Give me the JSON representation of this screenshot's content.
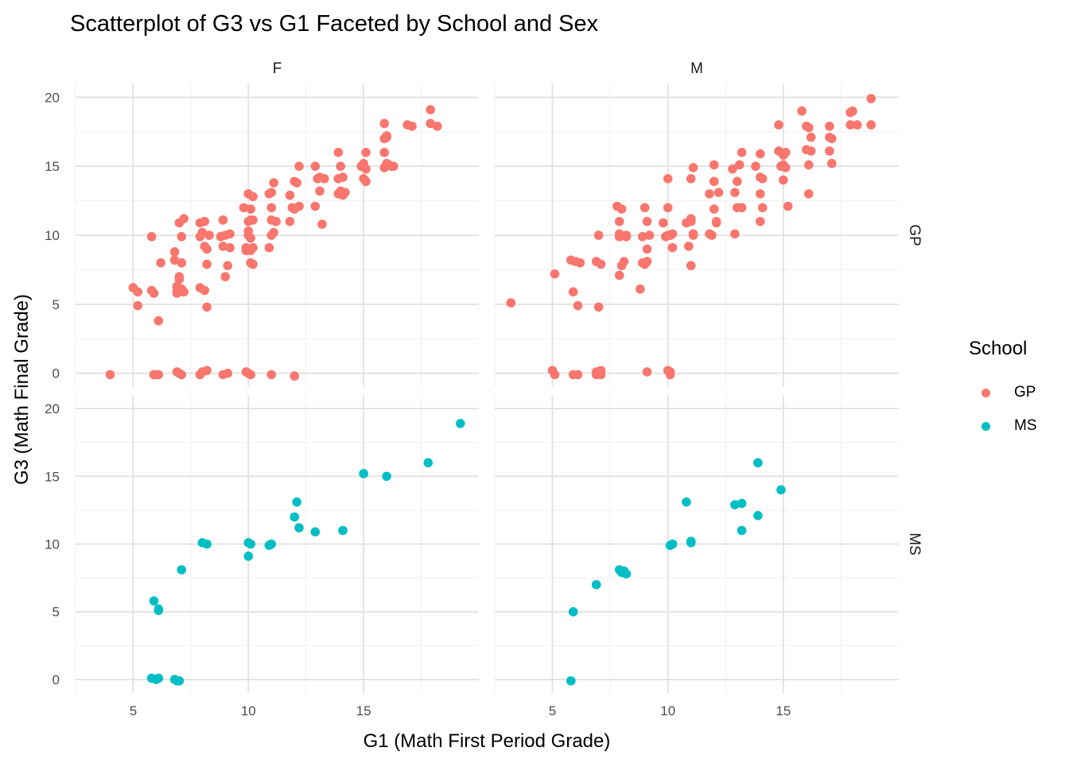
{
  "chart_data": {
    "type": "scatter",
    "title": "Scatterplot of G3 vs G1 Faceted by School and Sex",
    "xlabel": "G1 (Math First Period Grade)",
    "ylabel": "G3 (Math Final Grade)",
    "xlim": [
      2.5,
      20
    ],
    "ylim": [
      -1,
      21
    ],
    "x_ticks": [
      5,
      10,
      15
    ],
    "y_ticks": [
      0,
      5,
      10,
      15,
      20
    ],
    "grid": true,
    "legend_title": "School",
    "legend_position": "right",
    "colors": {
      "GP": "#F8766D",
      "MS": "#00BFC4"
    },
    "col_facets": [
      "F",
      "M"
    ],
    "row_facets": [
      "GP",
      "MS"
    ],
    "panels": [
      {
        "sex": "F",
        "school": "GP",
        "points": [
          [
            4.0,
            -0.1
          ],
          [
            5.9,
            -0.1
          ],
          [
            6.0,
            -0.1
          ],
          [
            6.1,
            -0.1
          ],
          [
            6.9,
            0.1
          ],
          [
            7.1,
            -0.1
          ],
          [
            7.0,
            0.0
          ],
          [
            8.0,
            0.1
          ],
          [
            8.2,
            0.2
          ],
          [
            7.9,
            -0.1
          ],
          [
            8.9,
            -0.1
          ],
          [
            9.1,
            0.0
          ],
          [
            9.9,
            0.1
          ],
          [
            10.1,
            -0.1
          ],
          [
            10.0,
            0.0
          ],
          [
            11.0,
            -0.1
          ],
          [
            12.0,
            -0.2
          ],
          [
            5.0,
            6.2
          ],
          [
            5.2,
            5.9
          ],
          [
            5.2,
            4.9
          ],
          [
            5.8,
            6.0
          ],
          [
            5.9,
            5.8
          ],
          [
            5.8,
            9.9
          ],
          [
            6.1,
            3.8
          ],
          [
            6.2,
            8.0
          ],
          [
            6.8,
            8.8
          ],
          [
            6.8,
            8.2
          ],
          [
            6.9,
            6.0
          ],
          [
            6.9,
            5.8
          ],
          [
            7.0,
            7.0
          ],
          [
            7.0,
            10.9
          ],
          [
            7.2,
            11.2
          ],
          [
            7.1,
            8.0
          ],
          [
            7.1,
            9.9
          ],
          [
            7.1,
            6.1
          ],
          [
            7.2,
            5.9
          ],
          [
            7.0,
            6.8
          ],
          [
            6.9,
            6.3
          ],
          [
            7.9,
            10.9
          ],
          [
            8.1,
            11.0
          ],
          [
            7.9,
            9.9
          ],
          [
            8.0,
            10.2
          ],
          [
            8.1,
            9.2
          ],
          [
            8.2,
            7.9
          ],
          [
            8.2,
            4.8
          ],
          [
            7.9,
            6.2
          ],
          [
            8.1,
            6.0
          ],
          [
            8.3,
            10.0
          ],
          [
            8.2,
            9.0
          ],
          [
            8.9,
            11.1
          ],
          [
            8.8,
            9.9
          ],
          [
            8.9,
            9.2
          ],
          [
            9.0,
            7.0
          ],
          [
            9.1,
            7.8
          ],
          [
            9.2,
            9.1
          ],
          [
            9.2,
            10.1
          ],
          [
            9.0,
            10.0
          ],
          [
            9.8,
            12.0
          ],
          [
            10.0,
            13.0
          ],
          [
            10.2,
            12.8
          ],
          [
            10.1,
            11.9
          ],
          [
            10.0,
            11.0
          ],
          [
            10.2,
            11.1
          ],
          [
            10.0,
            10.3
          ],
          [
            10.1,
            9.8
          ],
          [
            10.2,
            9.1
          ],
          [
            9.9,
            8.9
          ],
          [
            10.1,
            8.9
          ],
          [
            10.2,
            7.9
          ],
          [
            10.1,
            8.0
          ],
          [
            10.1,
            11.1
          ],
          [
            10.0,
            10.0
          ],
          [
            9.9,
            9.1
          ],
          [
            10.9,
            13.0
          ],
          [
            11.0,
            13.1
          ],
          [
            11.1,
            13.8
          ],
          [
            11.0,
            12.0
          ],
          [
            11.0,
            11.1
          ],
          [
            11.2,
            11.0
          ],
          [
            11.0,
            10.0
          ],
          [
            10.9,
            9.1
          ],
          [
            11.1,
            10.2
          ],
          [
            11.2,
            11.0
          ],
          [
            11.8,
            12.9
          ],
          [
            12.0,
            13.9
          ],
          [
            11.9,
            12.0
          ],
          [
            12.2,
            15.0
          ],
          [
            12.0,
            11.9
          ],
          [
            12.1,
            13.8
          ],
          [
            12.2,
            12.1
          ],
          [
            11.8,
            11.0
          ],
          [
            12.9,
            15.0
          ],
          [
            13.0,
            14.1
          ],
          [
            13.1,
            14.2
          ],
          [
            13.1,
            13.2
          ],
          [
            12.9,
            12.1
          ],
          [
            13.3,
            14.1
          ],
          [
            13.2,
            10.8
          ],
          [
            13.9,
            16.0
          ],
          [
            14.0,
            15.0
          ],
          [
            13.9,
            14.1
          ],
          [
            14.1,
            14.2
          ],
          [
            14.0,
            13.2
          ],
          [
            14.1,
            12.9
          ],
          [
            13.9,
            13.0
          ],
          [
            14.2,
            13.1
          ],
          [
            14.9,
            15.0
          ],
          [
            15.1,
            16.0
          ],
          [
            15.0,
            15.2
          ],
          [
            15.0,
            14.1
          ],
          [
            15.1,
            13.9
          ],
          [
            15.1,
            14.8
          ],
          [
            15.9,
            18.1
          ],
          [
            15.9,
            17.0
          ],
          [
            16.0,
            17.1
          ],
          [
            15.9,
            16.0
          ],
          [
            16.1,
            15.1
          ],
          [
            15.9,
            14.9
          ],
          [
            16.2,
            15.0
          ],
          [
            16.0,
            15.2
          ],
          [
            16.0,
            17.2
          ],
          [
            16.3,
            15.0
          ],
          [
            16.9,
            18.0
          ],
          [
            17.1,
            17.9
          ],
          [
            17.9,
            19.1
          ],
          [
            17.9,
            18.1
          ],
          [
            18.2,
            17.9
          ]
        ]
      },
      {
        "sex": "M",
        "school": "GP",
        "points": [
          [
            5.0,
            0.2
          ],
          [
            5.1,
            -0.1
          ],
          [
            5.9,
            -0.1
          ],
          [
            6.1,
            -0.1
          ],
          [
            6.9,
            0.1
          ],
          [
            7.0,
            0.0
          ],
          [
            7.1,
            -0.1
          ],
          [
            6.9,
            -0.1
          ],
          [
            7.1,
            0.2
          ],
          [
            9.1,
            0.1
          ],
          [
            10.0,
            0.2
          ],
          [
            10.1,
            -0.1
          ],
          [
            10.1,
            0.1
          ],
          [
            3.2,
            5.1
          ],
          [
            5.1,
            7.2
          ],
          [
            5.8,
            8.2
          ],
          [
            6.0,
            8.1
          ],
          [
            5.9,
            5.9
          ],
          [
            6.1,
            4.9
          ],
          [
            6.2,
            8.0
          ],
          [
            7.0,
            10.0
          ],
          [
            6.9,
            8.1
          ],
          [
            7.1,
            7.9
          ],
          [
            7.0,
            4.8
          ],
          [
            7.8,
            12.1
          ],
          [
            8.0,
            11.9
          ],
          [
            7.9,
            11.0
          ],
          [
            7.9,
            10.1
          ],
          [
            8.2,
            10.0
          ],
          [
            7.9,
            9.9
          ],
          [
            8.1,
            8.1
          ],
          [
            8.0,
            7.8
          ],
          [
            7.9,
            7.1
          ],
          [
            8.2,
            9.9
          ],
          [
            8.8,
            6.1
          ],
          [
            8.9,
            9.9
          ],
          [
            9.0,
            12.0
          ],
          [
            9.1,
            11.0
          ],
          [
            9.2,
            10.0
          ],
          [
            9.1,
            9.0
          ],
          [
            8.9,
            8.0
          ],
          [
            9.0,
            7.9
          ],
          [
            9.1,
            8.1
          ],
          [
            9.8,
            10.9
          ],
          [
            10.0,
            12.0
          ],
          [
            10.0,
            14.1
          ],
          [
            10.1,
            10.0
          ],
          [
            10.2,
            9.1
          ],
          [
            9.9,
            9.9
          ],
          [
            10.0,
            10.0
          ],
          [
            10.2,
            10.1
          ],
          [
            10.1,
            10.0
          ],
          [
            10.8,
            10.9
          ],
          [
            11.0,
            14.1
          ],
          [
            11.1,
            14.9
          ],
          [
            11.0,
            11.2
          ],
          [
            11.1,
            10.0
          ],
          [
            10.9,
            9.2
          ],
          [
            11.0,
            7.8
          ],
          [
            11.1,
            10.1
          ],
          [
            11.0,
            11.0
          ],
          [
            11.8,
            13.0
          ],
          [
            12.0,
            15.1
          ],
          [
            12.0,
            13.9
          ],
          [
            12.2,
            13.1
          ],
          [
            12.0,
            11.9
          ],
          [
            12.1,
            11.0
          ],
          [
            11.9,
            10.0
          ],
          [
            11.8,
            10.1
          ],
          [
            12.1,
            10.9
          ],
          [
            12.8,
            14.8
          ],
          [
            12.9,
            13.1
          ],
          [
            13.0,
            13.9
          ],
          [
            13.0,
            12.0
          ],
          [
            13.1,
            15.1
          ],
          [
            13.2,
            16.0
          ],
          [
            13.2,
            12.0
          ],
          [
            12.9,
            10.1
          ],
          [
            13.8,
            15.0
          ],
          [
            14.0,
            15.9
          ],
          [
            14.1,
            14.1
          ],
          [
            14.0,
            13.0
          ],
          [
            14.1,
            12.0
          ],
          [
            14.0,
            11.0
          ],
          [
            14.0,
            14.2
          ],
          [
            14.8,
            18.0
          ],
          [
            14.8,
            16.1
          ],
          [
            15.0,
            15.8
          ],
          [
            15.0,
            15.1
          ],
          [
            14.9,
            15.0
          ],
          [
            15.1,
            14.9
          ],
          [
            15.0,
            14.0
          ],
          [
            15.2,
            12.1
          ],
          [
            15.1,
            16.0
          ],
          [
            15.8,
            19.0
          ],
          [
            16.0,
            17.9
          ],
          [
            16.1,
            17.8
          ],
          [
            16.0,
            16.2
          ],
          [
            16.2,
            16.1
          ],
          [
            16.1,
            15.1
          ],
          [
            16.1,
            13.0
          ],
          [
            16.2,
            17.1
          ],
          [
            17.0,
            17.9
          ],
          [
            17.0,
            17.1
          ],
          [
            17.0,
            16.1
          ],
          [
            17.1,
            15.2
          ],
          [
            17.1,
            17.0
          ],
          [
            17.9,
            18.9
          ],
          [
            18.0,
            19.0
          ],
          [
            17.9,
            18.0
          ],
          [
            18.2,
            18.0
          ],
          [
            18.8,
            19.9
          ],
          [
            18.8,
            18.0
          ]
        ]
      },
      {
        "sex": "F",
        "school": "MS",
        "points": [
          [
            5.8,
            0.1
          ],
          [
            6.0,
            0.0
          ],
          [
            6.1,
            0.1
          ],
          [
            6.8,
            0.0
          ],
          [
            6.9,
            -0.1
          ],
          [
            7.0,
            -0.1
          ],
          [
            5.9,
            5.8
          ],
          [
            6.1,
            5.2
          ],
          [
            6.1,
            5.1
          ],
          [
            7.1,
            8.1
          ],
          [
            8.0,
            10.1
          ],
          [
            8.2,
            10.0
          ],
          [
            10.0,
            10.1
          ],
          [
            10.1,
            10.0
          ],
          [
            10.0,
            9.1
          ],
          [
            10.9,
            9.9
          ],
          [
            11.0,
            10.0
          ],
          [
            12.0,
            12.0
          ],
          [
            12.1,
            13.1
          ],
          [
            12.2,
            11.2
          ],
          [
            12.9,
            10.9
          ],
          [
            14.1,
            11.0
          ],
          [
            15.0,
            15.2
          ],
          [
            16.0,
            15.0
          ],
          [
            17.8,
            16.0
          ],
          [
            19.2,
            18.9
          ]
        ]
      },
      {
        "sex": "M",
        "school": "MS",
        "points": [
          [
            5.8,
            -0.1
          ],
          [
            5.9,
            5.0
          ],
          [
            6.9,
            7.0
          ],
          [
            7.9,
            8.1
          ],
          [
            8.0,
            7.9
          ],
          [
            8.1,
            8.0
          ],
          [
            8.2,
            7.8
          ],
          [
            10.1,
            9.9
          ],
          [
            10.2,
            10.0
          ],
          [
            10.8,
            13.1
          ],
          [
            11.0,
            10.1
          ],
          [
            11.0,
            10.2
          ],
          [
            12.9,
            12.9
          ],
          [
            13.2,
            13.0
          ],
          [
            13.2,
            11.0
          ],
          [
            13.9,
            16.0
          ],
          [
            13.9,
            12.1
          ],
          [
            14.9,
            14.0
          ]
        ]
      }
    ]
  }
}
